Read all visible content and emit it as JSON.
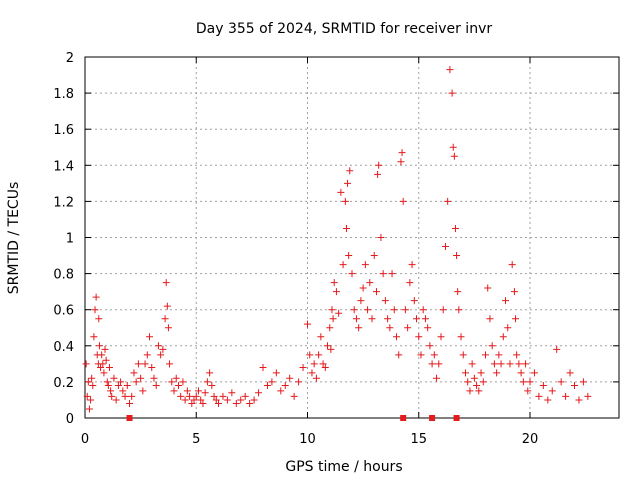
{
  "chart_data": {
    "type": "scatter",
    "title": "Day 355 of 2024, SRMTID for receiver invr",
    "xlabel": "GPS time / hours",
    "ylabel": "SRMTID / TECUs",
    "xlim": [
      0,
      24
    ],
    "ylim": [
      0,
      2
    ],
    "xticks": [
      0,
      5,
      10,
      15,
      20
    ],
    "yticks": [
      0,
      0.2,
      0.4,
      0.6,
      0.8,
      1,
      1.2,
      1.4,
      1.6,
      1.8,
      2
    ],
    "xtick_labels": [
      "0",
      "5",
      "10",
      "15",
      "20"
    ],
    "ytick_labels": [
      "0",
      "0.2",
      "0.4",
      "0.6",
      "0.8",
      "1",
      "1.2",
      "1.4",
      "1.6",
      "1.8",
      "2"
    ],
    "grid": true,
    "marker": "+",
    "color": "#e41a1c",
    "baseline_points": {
      "x": [
        2.0,
        14.3,
        15.6,
        16.7
      ],
      "y": [
        0,
        0,
        0,
        0
      ]
    },
    "series": [
      {
        "name": "SRMTID",
        "x": [
          0.05,
          0.1,
          0.15,
          0.2,
          0.25,
          0.3,
          0.35,
          0.4,
          0.45,
          0.5,
          0.55,
          0.6,
          0.62,
          0.65,
          0.7,
          0.75,
          0.8,
          0.85,
          0.9,
          0.95,
          1.0,
          1.05,
          1.1,
          1.15,
          1.2,
          1.3,
          1.4,
          1.5,
          1.6,
          1.7,
          1.8,
          1.9,
          2.0,
          2.1,
          2.2,
          2.3,
          2.4,
          2.5,
          2.6,
          2.7,
          2.8,
          2.9,
          3.0,
          3.1,
          3.2,
          3.3,
          3.4,
          3.5,
          3.6,
          3.65,
          3.7,
          3.75,
          3.8,
          3.9,
          4.0,
          4.1,
          4.2,
          4.3,
          4.4,
          4.5,
          4.6,
          4.7,
          4.8,
          4.9,
          5.0,
          5.1,
          5.2,
          5.3,
          5.4,
          5.5,
          5.6,
          5.7,
          5.8,
          5.9,
          6.0,
          6.2,
          6.4,
          6.6,
          6.8,
          7.0,
          7.2,
          7.4,
          7.6,
          7.8,
          8.0,
          8.2,
          8.4,
          8.6,
          8.8,
          9.0,
          9.2,
          9.4,
          9.6,
          9.8,
          10.0,
          10.1,
          10.2,
          10.3,
          10.4,
          10.5,
          10.6,
          10.7,
          10.8,
          10.9,
          11.0,
          11.05,
          11.1,
          11.15,
          11.2,
          11.3,
          11.4,
          11.5,
          11.6,
          11.7,
          11.75,
          11.8,
          11.85,
          11.9,
          12.0,
          12.1,
          12.2,
          12.3,
          12.4,
          12.5,
          12.6,
          12.7,
          12.8,
          12.9,
          13.0,
          13.1,
          13.15,
          13.2,
          13.3,
          13.4,
          13.5,
          13.6,
          13.7,
          13.8,
          13.9,
          14.0,
          14.1,
          14.2,
          14.25,
          14.3,
          14.4,
          14.5,
          14.6,
          14.7,
          14.8,
          14.9,
          15.0,
          15.1,
          15.2,
          15.3,
          15.4,
          15.5,
          15.6,
          15.7,
          15.8,
          15.9,
          16.0,
          16.1,
          16.2,
          16.3,
          16.4,
          16.5,
          16.55,
          16.6,
          16.65,
          16.7,
          16.75,
          16.8,
          16.9,
          17.0,
          17.1,
          17.2,
          17.3,
          17.4,
          17.5,
          17.6,
          17.7,
          17.8,
          17.9,
          18.0,
          18.1,
          18.2,
          18.3,
          18.4,
          18.5,
          18.6,
          18.7,
          18.8,
          18.9,
          19.0,
          19.1,
          19.2,
          19.3,
          19.35,
          19.4,
          19.5,
          19.6,
          19.7,
          19.8,
          19.9,
          20.0,
          20.2,
          20.4,
          20.6,
          20.8,
          21.0,
          21.2,
          21.4,
          21.6,
          21.8,
          22.0,
          22.2,
          22.4,
          22.6
        ],
        "y": [
          0.3,
          0.12,
          0.2,
          0.05,
          0.1,
          0.22,
          0.18,
          0.45,
          0.6,
          0.67,
          0.35,
          0.3,
          0.55,
          0.4,
          0.28,
          0.35,
          0.3,
          0.25,
          0.38,
          0.32,
          0.2,
          0.18,
          0.28,
          0.15,
          0.12,
          0.22,
          0.1,
          0.18,
          0.2,
          0.15,
          0.12,
          0.18,
          0.08,
          0.12,
          0.25,
          0.2,
          0.3,
          0.22,
          0.15,
          0.3,
          0.35,
          0.45,
          0.28,
          0.22,
          0.18,
          0.4,
          0.35,
          0.38,
          0.55,
          0.75,
          0.62,
          0.5,
          0.3,
          0.2,
          0.15,
          0.22,
          0.18,
          0.12,
          0.2,
          0.1,
          0.15,
          0.12,
          0.08,
          0.1,
          0.12,
          0.15,
          0.1,
          0.08,
          0.14,
          0.2,
          0.25,
          0.18,
          0.12,
          0.1,
          0.08,
          0.12,
          0.1,
          0.14,
          0.08,
          0.1,
          0.12,
          0.08,
          0.1,
          0.14,
          0.28,
          0.18,
          0.2,
          0.25,
          0.15,
          0.18,
          0.22,
          0.12,
          0.2,
          0.28,
          0.52,
          0.35,
          0.25,
          0.3,
          0.22,
          0.35,
          0.45,
          0.3,
          0.28,
          0.4,
          0.5,
          0.38,
          0.6,
          0.55,
          0.75,
          0.7,
          0.58,
          1.25,
          0.85,
          1.2,
          1.05,
          1.3,
          0.9,
          1.37,
          0.8,
          0.6,
          0.55,
          0.5,
          0.65,
          0.72,
          0.85,
          0.6,
          0.75,
          0.55,
          0.9,
          0.7,
          1.35,
          1.4,
          1.0,
          0.8,
          0.65,
          0.55,
          0.5,
          0.8,
          0.6,
          0.45,
          0.35,
          1.42,
          1.47,
          1.2,
          0.6,
          0.5,
          0.75,
          0.85,
          0.65,
          0.55,
          0.45,
          0.35,
          0.6,
          0.55,
          0.5,
          0.4,
          0.3,
          0.35,
          0.22,
          0.3,
          0.45,
          0.6,
          0.95,
          1.2,
          1.93,
          1.8,
          1.5,
          1.45,
          1.05,
          0.9,
          0.7,
          0.6,
          0.45,
          0.35,
          0.25,
          0.2,
          0.15,
          0.3,
          0.22,
          0.18,
          0.15,
          0.25,
          0.2,
          0.35,
          0.72,
          0.55,
          0.4,
          0.3,
          0.25,
          0.35,
          0.3,
          0.45,
          0.65,
          0.5,
          0.3,
          0.85,
          0.7,
          0.55,
          0.35,
          0.3,
          0.25,
          0.2,
          0.3,
          0.15,
          0.2,
          0.25,
          0.12,
          0.18,
          0.1,
          0.15,
          0.38,
          0.2,
          0.12,
          0.25,
          0.18,
          0.1,
          0.2,
          0.12
        ]
      }
    ]
  }
}
